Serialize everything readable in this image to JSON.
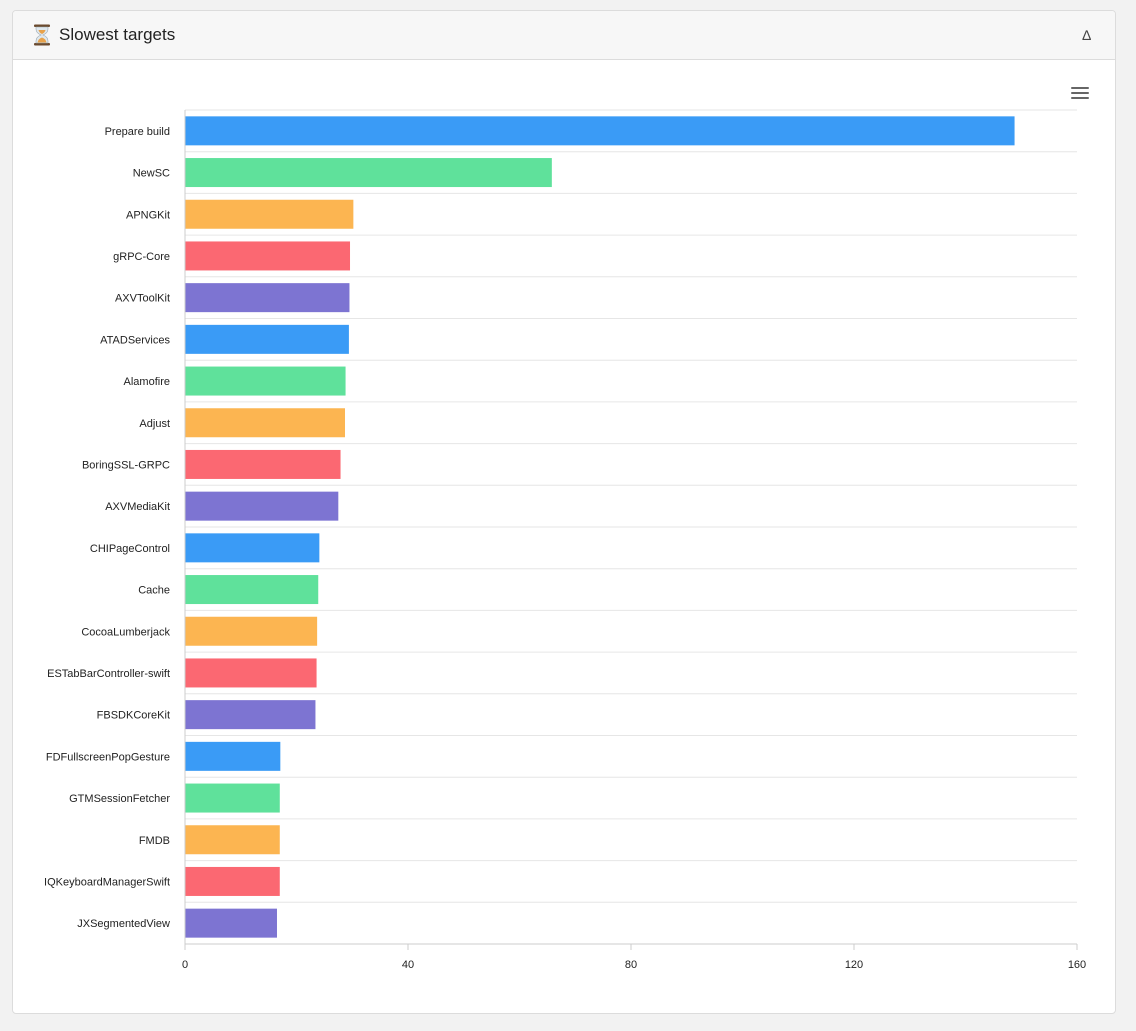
{
  "card": {
    "title": "Slowest targets",
    "icon": "hourglass-icon",
    "collapse_glyph": "∆"
  },
  "chart_data": {
    "type": "bar",
    "orientation": "horizontal",
    "categories": [
      "Prepare build",
      "NewSC",
      "APNGKit",
      "gRPC-Core",
      "AXVToolKit",
      "ATADServices",
      "Alamofire",
      "Adjust",
      "BoringSSL-GRPC",
      "AXVMediaKit",
      "CHIPageControl",
      "Cache",
      "CocoaLumberjack",
      "ESTabBarController-swift",
      "FBSDKCoreKit",
      "FDFullscreenPopGesture",
      "GTMSessionFetcher",
      "FMDB",
      "IQKeyboardManagerSwift",
      "JXSegmentedView"
    ],
    "values": [
      148.8,
      65.8,
      30.2,
      29.6,
      29.5,
      29.4,
      28.8,
      28.7,
      27.9,
      27.5,
      24.1,
      23.9,
      23.7,
      23.6,
      23.4,
      17.1,
      17.0,
      17.0,
      17.0,
      16.5
    ],
    "colors": [
      "#3a9bf6",
      "#5fe19b",
      "#fcb551",
      "#fb6872",
      "#7d74d2"
    ],
    "xlim": [
      0,
      160
    ],
    "xticks": [
      0,
      40,
      80,
      120,
      160
    ],
    "grid": "horizontal"
  }
}
